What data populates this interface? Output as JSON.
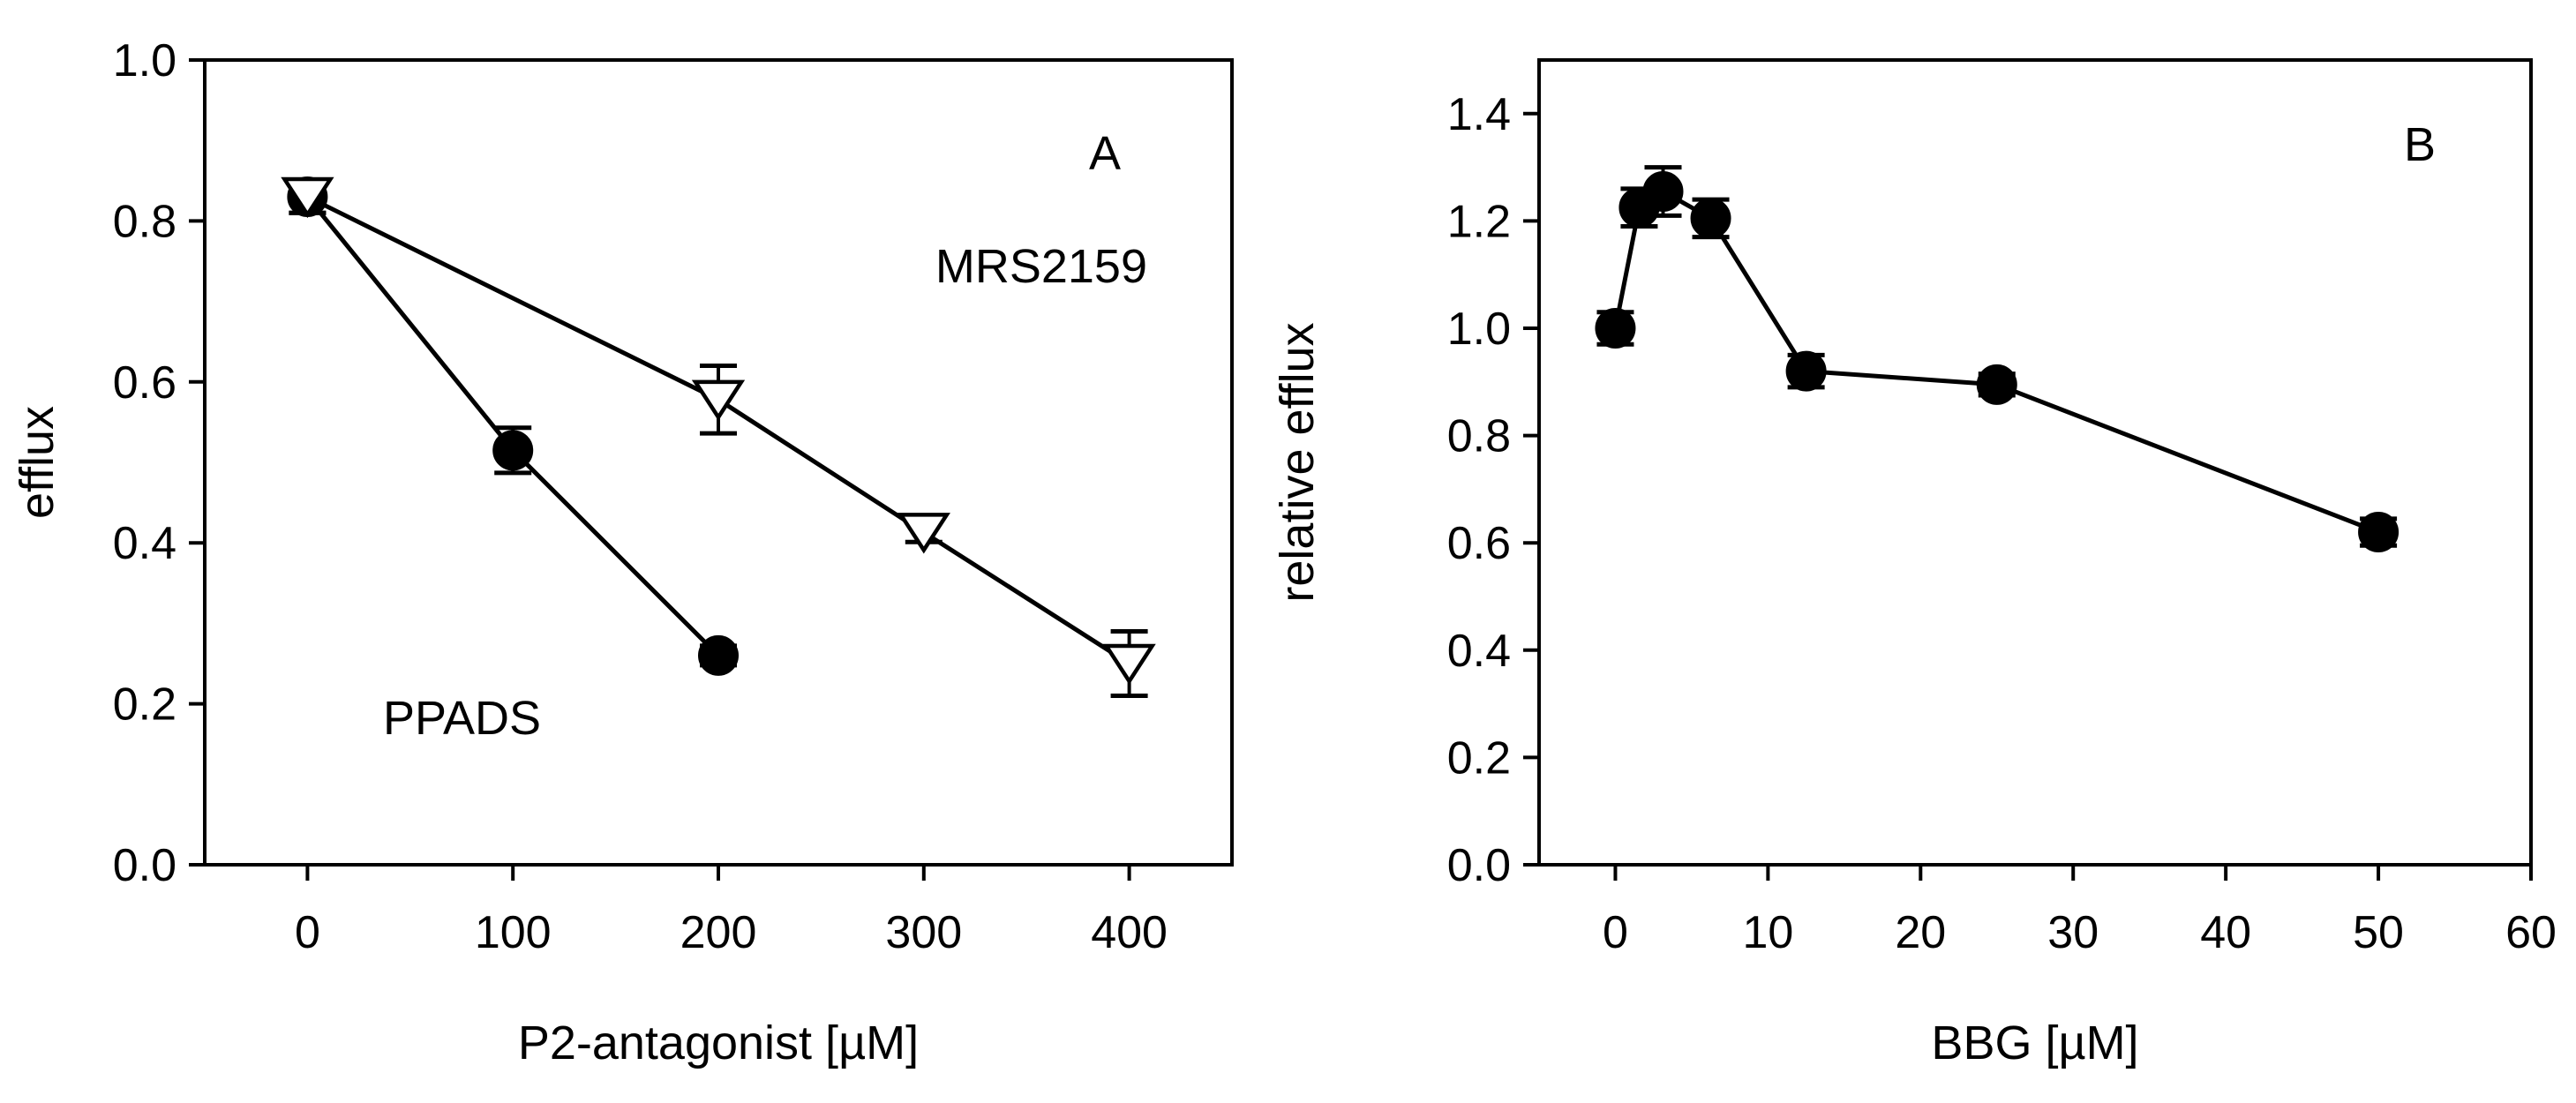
{
  "chart_data": [
    {
      "panel": "A",
      "type": "line",
      "xlabel": "P2-antagonist [µM]",
      "ylabel": "efflux",
      "xlim": [
        -50,
        450
      ],
      "ylim": [
        0.0,
        1.0
      ],
      "xticks": [
        0,
        100,
        200,
        300,
        400
      ],
      "yticks": [
        0.0,
        0.2,
        0.4,
        0.6,
        0.8,
        1.0
      ],
      "xtick_labels": [
        "0",
        "100",
        "200",
        "300",
        "400"
      ],
      "ytick_labels": [
        "0.0",
        "0.2",
        "0.4",
        "0.6",
        "0.8",
        "1.0"
      ],
      "panel_label": "A",
      "series": [
        {
          "name": "PPADS",
          "marker": "filled-circle",
          "x": [
            0,
            100,
            200
          ],
          "y": [
            0.83,
            0.515,
            0.26
          ],
          "err": [
            0.02,
            0.028,
            0.012
          ]
        },
        {
          "name": "MRS2159",
          "marker": "open-triangle-down",
          "x": [
            0,
            200,
            300,
            400
          ],
          "y": [
            0.83,
            0.578,
            0.413,
            0.25
          ],
          "err": [
            0.02,
            0.042,
            0.012,
            0.04
          ]
        }
      ],
      "annotations": [
        {
          "text": "PPADS",
          "position": "lower-left"
        },
        {
          "text": "MRS2159",
          "position": "upper-right"
        }
      ]
    },
    {
      "panel": "B",
      "type": "line",
      "xlabel": "BBG [µM]",
      "ylabel": "relative efflux",
      "xlim": [
        -5,
        60
      ],
      "ylim": [
        0.0,
        1.5
      ],
      "xticks": [
        0,
        10,
        20,
        30,
        40,
        50,
        60
      ],
      "yticks": [
        0.0,
        0.2,
        0.4,
        0.6,
        0.8,
        1.0,
        1.2,
        1.4
      ],
      "xtick_labels": [
        "0",
        "10",
        "20",
        "30",
        "40",
        "50",
        "60"
      ],
      "ytick_labels": [
        "0.0",
        "0.2",
        "0.4",
        "0.6",
        "0.8",
        "1.0",
        "1.2",
        "1.4"
      ],
      "panel_label": "B",
      "series": [
        {
          "name": "BBG",
          "marker": "filled-circle",
          "x": [
            0,
            1.56,
            3.125,
            6.25,
            12.5,
            25,
            50
          ],
          "y": [
            1.0,
            1.225,
            1.255,
            1.205,
            0.92,
            0.895,
            0.62
          ],
          "err": [
            0.03,
            0.035,
            0.045,
            0.035,
            0.03,
            0.02,
            0.025
          ]
        }
      ]
    }
  ]
}
